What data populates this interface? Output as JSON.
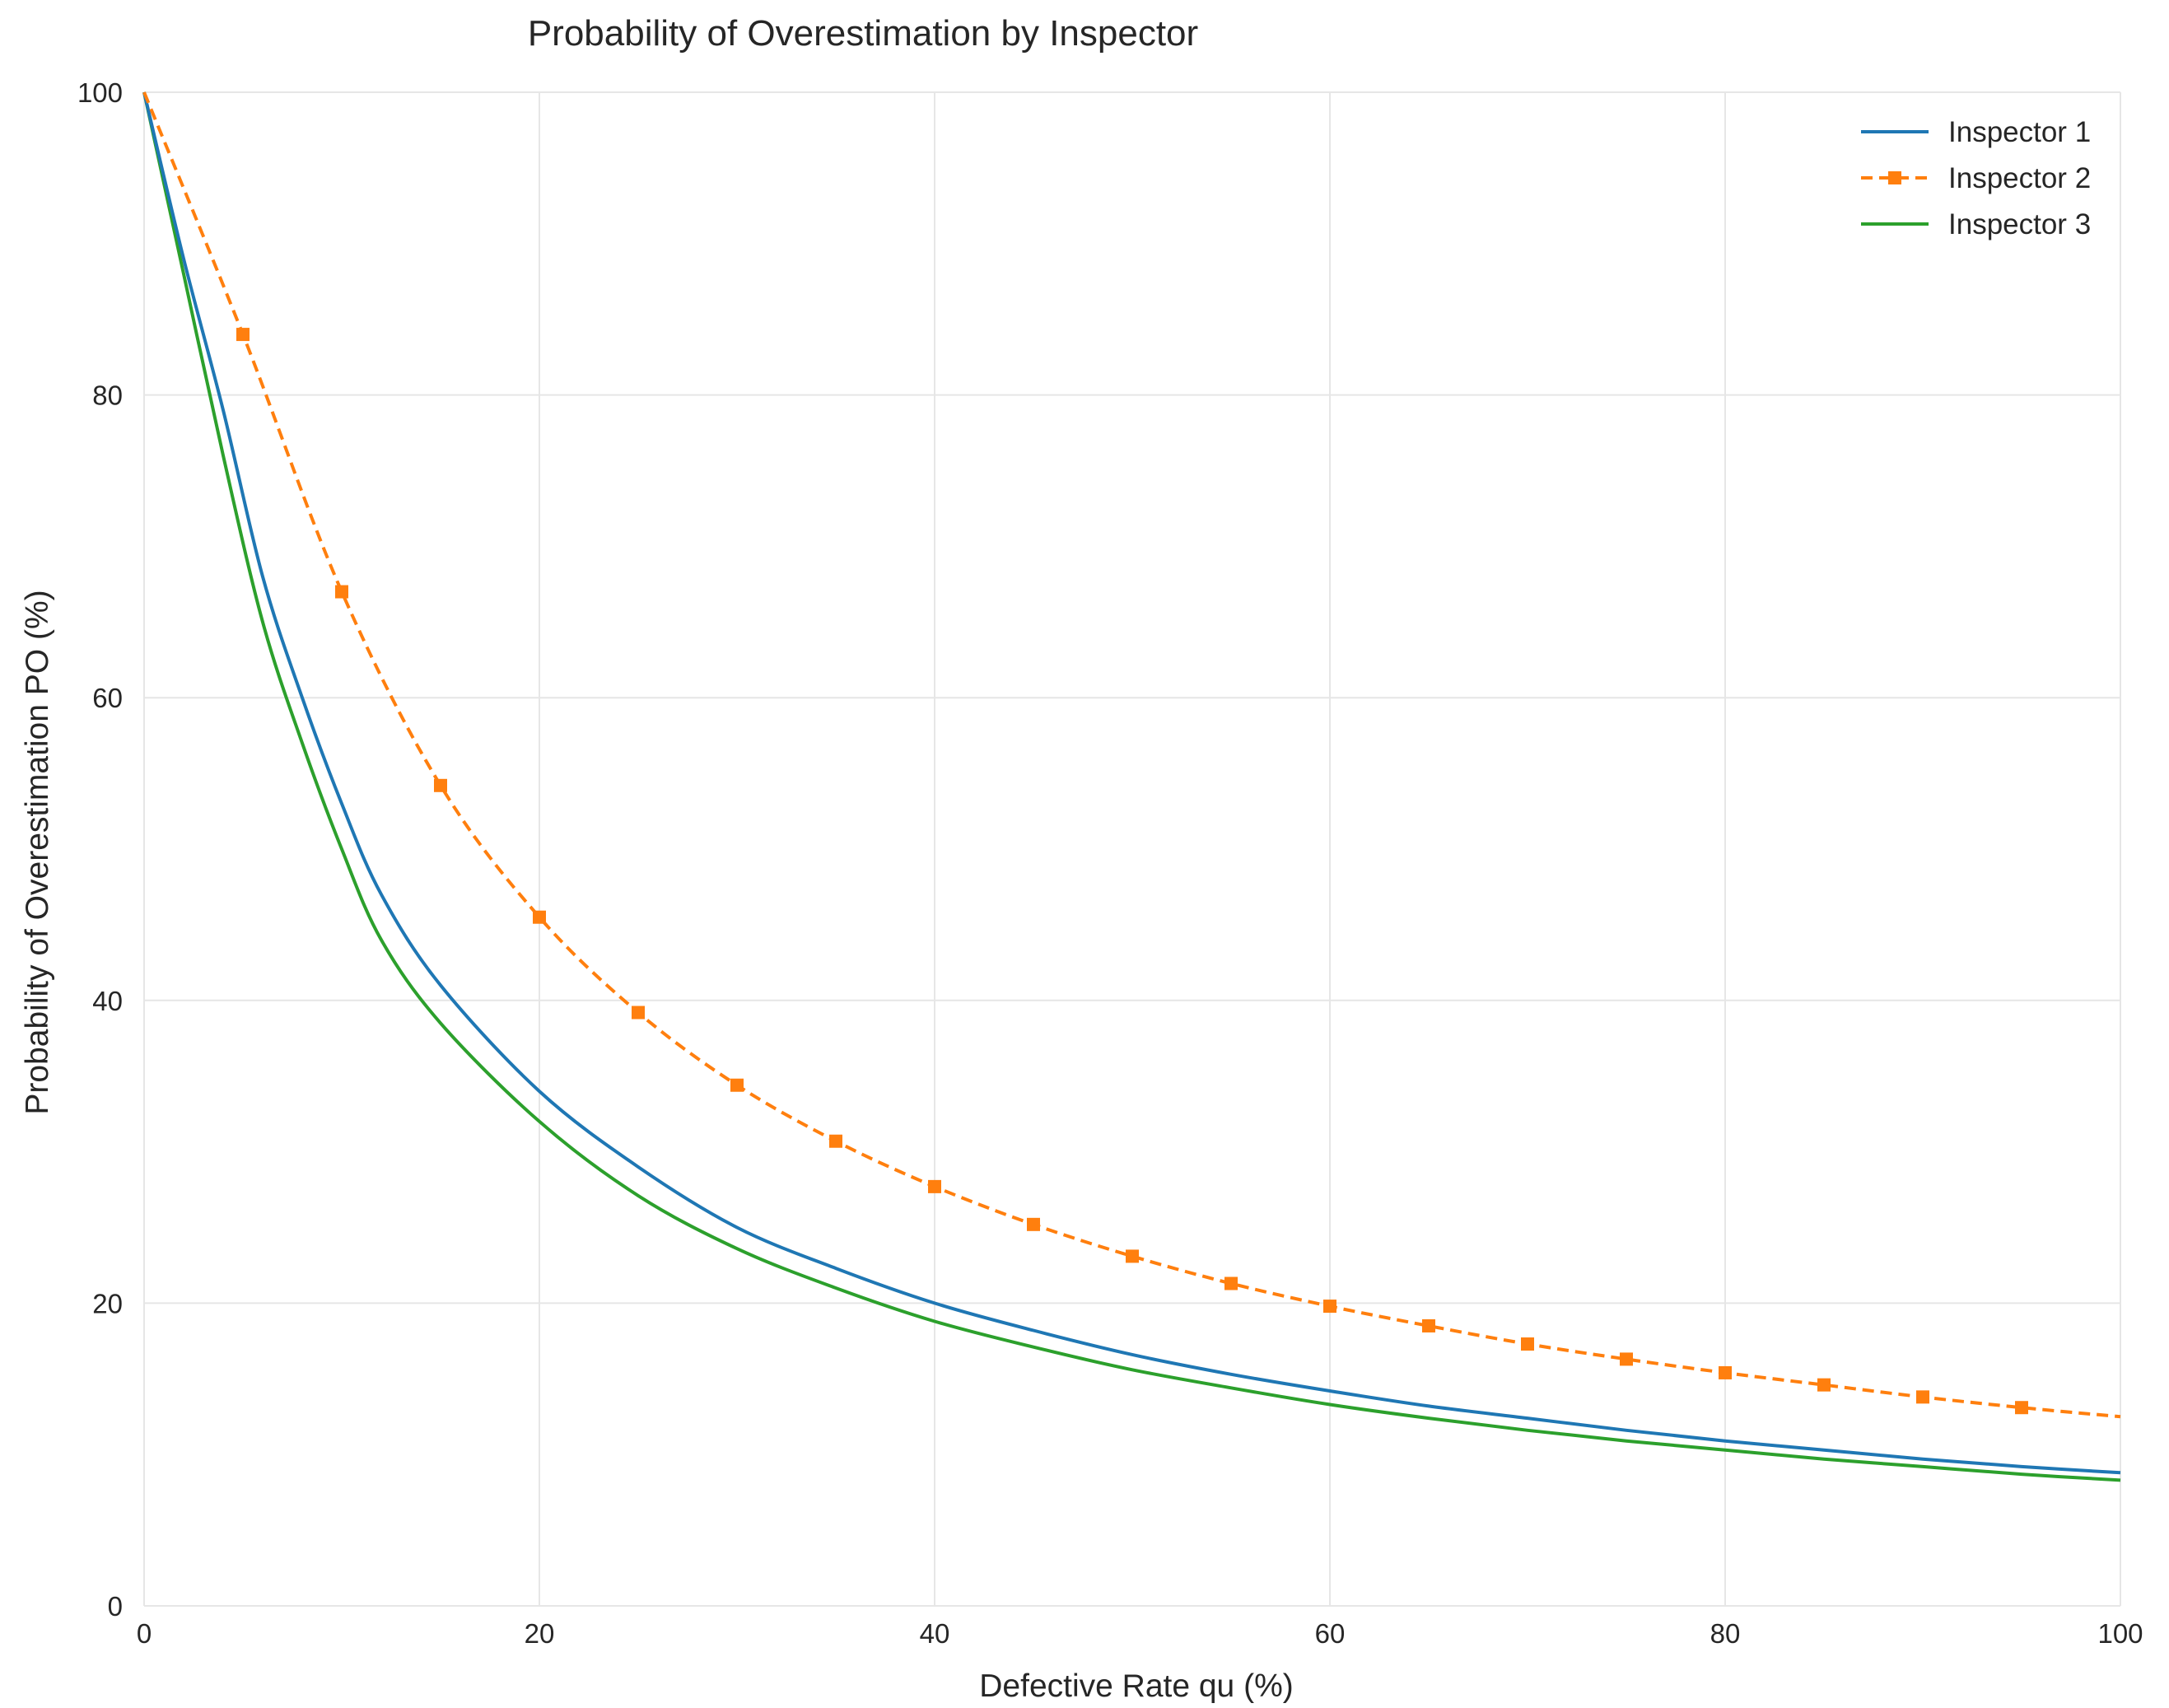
{
  "chart_data": {
    "type": "line",
    "title": "Probability of Overestimation by Inspector",
    "xlabel": "Defective Rate qu (%)",
    "ylabel": "Probability of Overestimation PO (%)",
    "xlim": [
      0,
      100
    ],
    "ylim": [
      0,
      100
    ],
    "xticks": [
      "0",
      "20",
      "40",
      "60",
      "80",
      "100"
    ],
    "yticks": [
      "0",
      "20",
      "40",
      "60",
      "80",
      "100"
    ],
    "grid": true,
    "legend_position": "top-right",
    "series": [
      {
        "name": "Inspector 1",
        "color": "#1f77b4",
        "style": "solid",
        "x": [
          0,
          2,
          4,
          6,
          8,
          10,
          12,
          15,
          20,
          25,
          30,
          35,
          40,
          45,
          50,
          55,
          60,
          65,
          70,
          75,
          80,
          85,
          90,
          95,
          100
        ],
        "y": [
          100,
          89,
          79,
          68,
          60,
          53,
          47,
          41,
          34,
          29,
          25,
          22.3,
          20,
          18.2,
          16.6,
          15.3,
          14.2,
          13.2,
          12.4,
          11.6,
          10.9,
          10.3,
          9.7,
          9.2,
          8.8
        ]
      },
      {
        "name": "Inspector 2",
        "color": "#ff7f0e",
        "style": "dashed",
        "marker": "square",
        "x": [
          0,
          5,
          10,
          15,
          20,
          25,
          30,
          35,
          40,
          45,
          50,
          55,
          60,
          65,
          70,
          75,
          80,
          85,
          90,
          95,
          100
        ],
        "y": [
          100,
          84,
          67,
          54.2,
          45.5,
          39.2,
          34.4,
          30.7,
          27.7,
          25.2,
          23.1,
          21.3,
          19.8,
          18.5,
          17.3,
          16.3,
          15.4,
          14.6,
          13.8,
          13.1,
          12.5
        ]
      },
      {
        "name": "Inspector 3",
        "color": "#2ca02c",
        "style": "solid",
        "x": [
          0,
          2,
          4,
          6,
          8,
          10,
          12,
          15,
          20,
          25,
          30,
          35,
          40,
          45,
          50,
          55,
          60,
          65,
          70,
          75,
          80,
          85,
          90,
          95,
          100
        ],
        "y": [
          100,
          88,
          76,
          65,
          57,
          50,
          44,
          38.5,
          32,
          27.1,
          23.6,
          21,
          18.8,
          17.1,
          15.6,
          14.4,
          13.3,
          12.4,
          11.6,
          10.9,
          10.3,
          9.7,
          9.2,
          8.7,
          8.3
        ]
      }
    ],
    "marker_points": {
      "Inspector 2": [
        5,
        10,
        15,
        20,
        25,
        30,
        35,
        40,
        45,
        50,
        55,
        60,
        65,
        70,
        75,
        80,
        85,
        90,
        95
      ]
    }
  }
}
